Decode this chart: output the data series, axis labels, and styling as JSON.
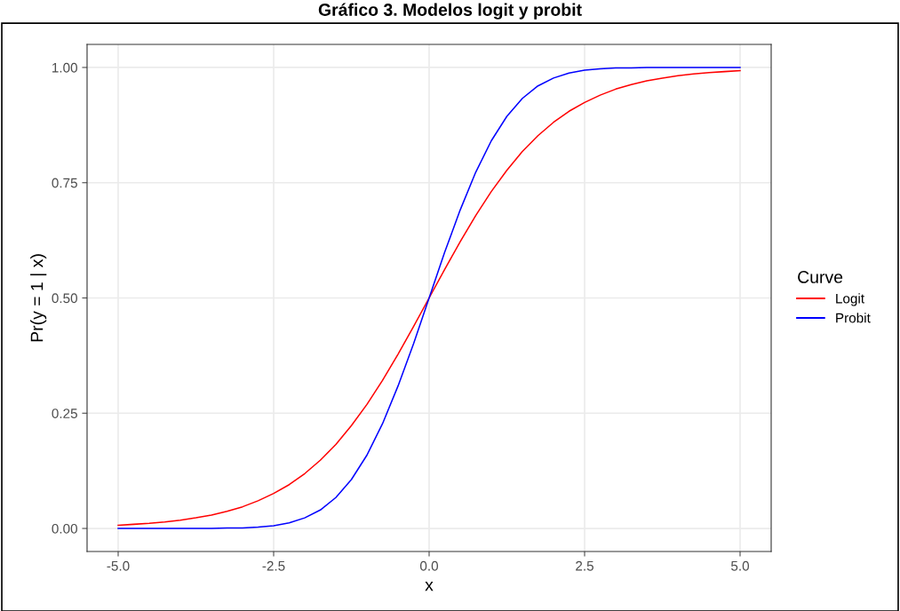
{
  "chart_data": {
    "type": "line",
    "title": "Gráfico 3. Modelos logit y probit",
    "xlabel": "x",
    "ylabel": "Pr(y = 1 | x)",
    "legend_title": "Curve",
    "x": [
      -5,
      -4.75,
      -4.5,
      -4.25,
      -4,
      -3.75,
      -3.5,
      -3.25,
      -3,
      -2.75,
      -2.5,
      -2.25,
      -2,
      -1.75,
      -1.5,
      -1.25,
      -1,
      -0.75,
      -0.5,
      -0.25,
      0,
      0.25,
      0.5,
      0.75,
      1,
      1.25,
      1.5,
      1.75,
      2,
      2.25,
      2.5,
      2.75,
      3,
      3.25,
      3.5,
      3.75,
      4,
      4.25,
      4.5,
      4.75,
      5
    ],
    "series": [
      {
        "name": "Logit",
        "color": "#ff0000",
        "values": [
          0.007,
          0.009,
          0.011,
          0.014,
          0.018,
          0.023,
          0.029,
          0.037,
          0.047,
          0.06,
          0.076,
          0.095,
          0.119,
          0.148,
          0.182,
          0.223,
          0.269,
          0.321,
          0.378,
          0.438,
          0.5,
          0.562,
          0.622,
          0.679,
          0.731,
          0.777,
          0.818,
          0.852,
          0.881,
          0.905,
          0.924,
          0.94,
          0.953,
          0.963,
          0.971,
          0.977,
          0.982,
          0.986,
          0.989,
          0.991,
          0.993
        ]
      },
      {
        "name": "Probit",
        "color": "#0000ff",
        "values": [
          0,
          0,
          0,
          0,
          0,
          0,
          0,
          0.001,
          0.001,
          0.003,
          0.006,
          0.012,
          0.023,
          0.04,
          0.067,
          0.106,
          0.159,
          0.227,
          0.309,
          0.401,
          0.5,
          0.599,
          0.691,
          0.773,
          0.841,
          0.894,
          0.933,
          0.96,
          0.977,
          0.988,
          0.994,
          0.997,
          0.999,
          0.999,
          1,
          1,
          1,
          1,
          1,
          1,
          1
        ]
      }
    ],
    "xlim": [
      -5.5,
      5.5
    ],
    "ylim": [
      -0.05,
      1.05
    ],
    "xticks": [
      {
        "value": -5,
        "label": "-5.0"
      },
      {
        "value": -2.5,
        "label": "-2.5"
      },
      {
        "value": 0,
        "label": "0.0"
      },
      {
        "value": 2.5,
        "label": "2.5"
      },
      {
        "value": 5,
        "label": "5.0"
      }
    ],
    "yticks": [
      {
        "value": 0,
        "label": "0.00"
      },
      {
        "value": 0.25,
        "label": "0.25"
      },
      {
        "value": 0.5,
        "label": "0.50"
      },
      {
        "value": 0.75,
        "label": "0.75"
      },
      {
        "value": 1,
        "label": "1.00"
      }
    ],
    "grid": true,
    "legend": "right",
    "line_style": "solid",
    "marker": "none"
  }
}
